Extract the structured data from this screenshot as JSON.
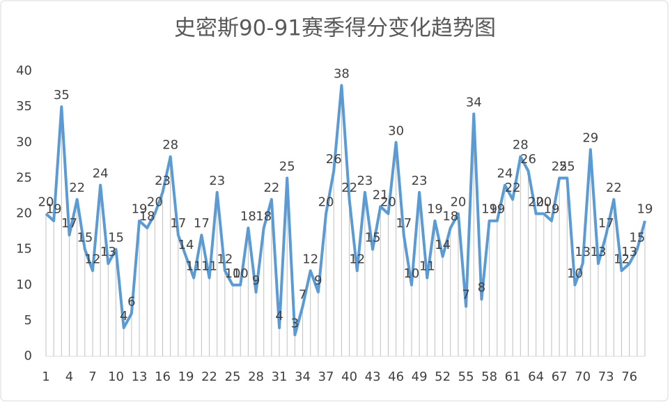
{
  "chart_data": {
    "type": "line",
    "title": "史密斯90-91赛季得分变化趋势图",
    "x": [
      1,
      2,
      3,
      4,
      5,
      6,
      7,
      8,
      9,
      10,
      11,
      12,
      13,
      14,
      15,
      16,
      17,
      18,
      19,
      20,
      21,
      22,
      23,
      24,
      25,
      26,
      27,
      28,
      29,
      30,
      31,
      32,
      33,
      34,
      35,
      36,
      37,
      38,
      39,
      40,
      41,
      42,
      43,
      44,
      45,
      46,
      47,
      48,
      49,
      50,
      51,
      52,
      53,
      54,
      55,
      56,
      57,
      58,
      59,
      60,
      61,
      62,
      63,
      64,
      65,
      66,
      67,
      68,
      69,
      70,
      71,
      72,
      73,
      74,
      75,
      76,
      77,
      78
    ],
    "series": [
      {
        "name": "得分",
        "color": "#5b9bd5",
        "values": [
          20,
          19,
          35,
          17,
          22,
          15,
          12,
          24,
          13,
          15,
          4,
          6,
          19,
          18,
          20,
          23,
          28,
          17,
          14,
          11,
          17,
          11,
          23,
          12,
          10,
          10,
          18,
          9,
          18,
          22,
          4,
          25,
          3,
          7,
          12,
          9,
          20,
          26,
          38,
          22,
          12,
          23,
          15,
          21,
          20,
          30,
          17,
          10,
          23,
          11,
          19,
          14,
          18,
          20,
          7,
          34,
          8,
          19,
          19,
          24,
          22,
          28,
          26,
          20,
          20,
          19,
          25,
          25,
          10,
          13,
          29,
          13,
          17,
          22,
          12,
          13,
          15,
          19
        ]
      }
    ],
    "xlim": [
      1,
      78
    ],
    "xticks": [
      1,
      4,
      7,
      10,
      13,
      16,
      19,
      22,
      25,
      28,
      31,
      34,
      37,
      40,
      43,
      46,
      49,
      52,
      55,
      58,
      61,
      64,
      67,
      70,
      73,
      76
    ],
    "ylim": [
      0,
      40
    ],
    "yticks": [
      0,
      5,
      10,
      15,
      20,
      25,
      30,
      35,
      40
    ],
    "drop_lines": true,
    "data_labels": true
  }
}
